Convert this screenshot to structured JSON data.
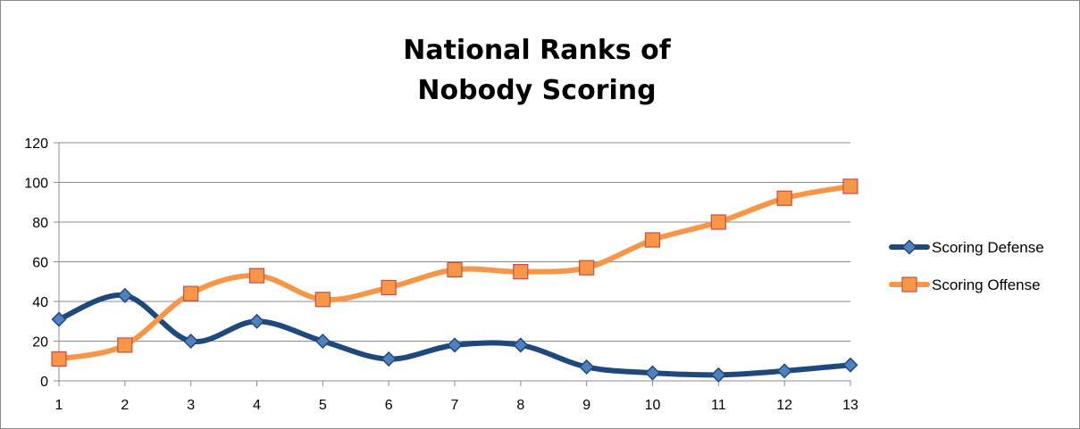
{
  "chart_data": {
    "type": "line",
    "title": [
      "National Ranks of",
      "Nobody Scoring"
    ],
    "xlabel": "",
    "ylabel": "",
    "categories": [
      "1",
      "2",
      "3",
      "4",
      "5",
      "6",
      "7",
      "8",
      "9",
      "10",
      "11",
      "12",
      "13"
    ],
    "ylim": [
      0,
      120
    ],
    "yticks": [
      "0",
      "20",
      "40",
      "60",
      "80",
      "100",
      "120"
    ],
    "grid": true,
    "legend_position": "right",
    "series": [
      {
        "name": "Scoring Defense",
        "color": "#1f497d",
        "marker": "diamond",
        "values": [
          31,
          43,
          20,
          30,
          20,
          11,
          18,
          18,
          7,
          4,
          3,
          5,
          8
        ]
      },
      {
        "name": "Scoring Offense",
        "color": "#f79646",
        "marker": "square",
        "values": [
          11,
          18,
          44,
          53,
          41,
          47,
          56,
          55,
          57,
          71,
          80,
          92,
          98
        ]
      }
    ]
  }
}
